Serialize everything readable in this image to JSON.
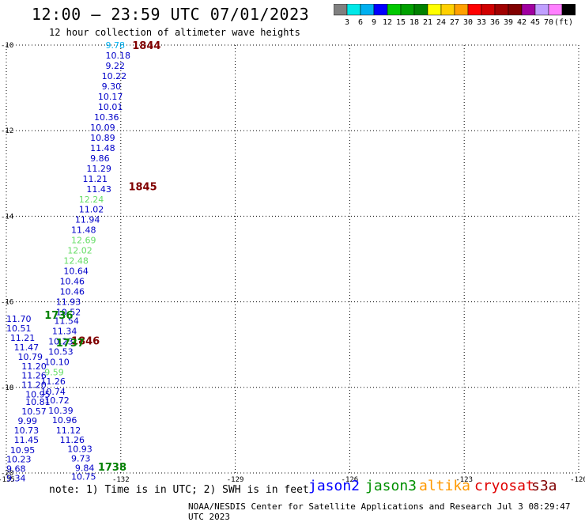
{
  "title": "12:00 – 23:59 UTC 07/01/2023",
  "subtitle": "12 hour collection of altimeter wave heights",
  "legend": {
    "unit": "(ft)",
    "colors": [
      "#808080",
      "#00e8e8",
      "#00b0f0",
      "#0000ff",
      "#00c800",
      "#00a000",
      "#008000",
      "#ffff00",
      "#ffd000",
      "#ffa000",
      "#ff0000",
      "#d00000",
      "#a00000",
      "#800000",
      "#a000a0",
      "#c0a0ff",
      "#ff80ff",
      "#000000"
    ],
    "labels": [
      "3",
      "6",
      "9",
      "12",
      "15",
      "18",
      "21",
      "24",
      "27",
      "30",
      "33",
      "36",
      "39",
      "42",
      "45",
      "70"
    ]
  },
  "axes": {
    "lon_labels": [
      "-135",
      "-132",
      "-129",
      "-126",
      "-123",
      "-120"
    ],
    "lat_labels": [
      "-10",
      "-12",
      "-14",
      "-16",
      "-18",
      "-20"
    ]
  },
  "times": [
    {
      "text": "1844",
      "lon": -131.7,
      "lat": -10.0,
      "color": "#800000"
    },
    {
      "text": "1845",
      "lon": -131.8,
      "lat": -13.3,
      "color": "#800000"
    },
    {
      "text": "1846",
      "lon": -133.3,
      "lat": -16.9,
      "color": "#800000"
    },
    {
      "text": "1736",
      "lon": -134.0,
      "lat": -16.3,
      "color": "#008000"
    },
    {
      "text": "1737",
      "lon": -133.7,
      "lat": -16.95,
      "color": "#008000"
    },
    {
      "text": "1738",
      "lon": -132.6,
      "lat": -19.85,
      "color": "#008000"
    }
  ],
  "track_a": [
    {
      "v": "9.78",
      "lon": -132.4,
      "lat": -10.0,
      "color": "#00b0f0"
    },
    {
      "v": "10.18",
      "lon": -132.4,
      "lat": -10.24,
      "color": "#0000c8"
    },
    {
      "v": "9.22",
      "lon": -132.4,
      "lat": -10.48,
      "color": "#0000c8"
    },
    {
      "v": "10.22",
      "lon": -132.5,
      "lat": -10.72,
      "color": "#0000c8"
    },
    {
      "v": "9.30",
      "lon": -132.5,
      "lat": -10.96,
      "color": "#0000c8"
    },
    {
      "v": "10.17",
      "lon": -132.6,
      "lat": -11.2,
      "color": "#0000c8"
    },
    {
      "v": "10.01",
      "lon": -132.6,
      "lat": -11.44,
      "color": "#0000c8"
    },
    {
      "v": "10.36",
      "lon": -132.7,
      "lat": -11.68,
      "color": "#0000c8"
    },
    {
      "v": "10.09",
      "lon": -132.8,
      "lat": -11.92,
      "color": "#0000c8"
    },
    {
      "v": "10.89",
      "lon": -132.8,
      "lat": -12.16,
      "color": "#0000c8"
    },
    {
      "v": "11.48",
      "lon": -132.8,
      "lat": -12.4,
      "color": "#0000c8"
    },
    {
      "v": "9.86",
      "lon": -132.8,
      "lat": -12.64,
      "color": "#0000c8"
    },
    {
      "v": "11.29",
      "lon": -132.9,
      "lat": -12.88,
      "color": "#0000c8"
    },
    {
      "v": "11.21",
      "lon": -133.0,
      "lat": -13.12,
      "color": "#0000c8"
    },
    {
      "v": "11.43",
      "lon": -132.9,
      "lat": -13.36,
      "color": "#0000c8"
    },
    {
      "v": "12.24",
      "lon": -133.1,
      "lat": -13.6,
      "color": "#66dd66"
    },
    {
      "v": "11.02",
      "lon": -133.1,
      "lat": -13.84,
      "color": "#0000c8"
    },
    {
      "v": "11.94",
      "lon": -133.2,
      "lat": -14.08,
      "color": "#0000c8"
    },
    {
      "v": "11.48",
      "lon": -133.3,
      "lat": -14.32,
      "color": "#0000c8"
    },
    {
      "v": "12.69",
      "lon": -133.3,
      "lat": -14.56,
      "color": "#66dd66"
    },
    {
      "v": "12.02",
      "lon": -133.4,
      "lat": -14.8,
      "color": "#66dd66"
    },
    {
      "v": "12.48",
      "lon": -133.5,
      "lat": -15.04,
      "color": "#66dd66"
    },
    {
      "v": "10.64",
      "lon": -133.5,
      "lat": -15.28,
      "color": "#0000c8"
    },
    {
      "v": "10.46",
      "lon": -133.6,
      "lat": -15.52,
      "color": "#0000c8"
    },
    {
      "v": "10.46",
      "lon": -133.6,
      "lat": -15.76,
      "color": "#0000c8"
    },
    {
      "v": "11.93",
      "lon": -133.7,
      "lat": -16.0,
      "color": "#0000c8"
    },
    {
      "v": "10.52",
      "lon": -133.7,
      "lat": -16.24,
      "color": "#0000c8"
    },
    {
      "v": "11.54",
      "lon": -133.75,
      "lat": -16.44,
      "color": "#0000c8"
    },
    {
      "v": "11.34",
      "lon": -133.8,
      "lat": -16.68,
      "color": "#0000c8"
    },
    {
      "v": "10.23",
      "lon": -133.9,
      "lat": -16.92,
      "color": "#0000c8"
    },
    {
      "v": "10.53",
      "lon": -133.9,
      "lat": -17.16,
      "color": "#0000c8"
    },
    {
      "v": "10.10",
      "lon": -134.0,
      "lat": -17.4,
      "color": "#0000c8"
    },
    {
      "v": "9.59",
      "lon": -134.0,
      "lat": -17.64,
      "color": "#66dd66"
    },
    {
      "v": "11.26",
      "lon": -134.1,
      "lat": -17.86,
      "color": "#0000c8"
    },
    {
      "v": "10.74",
      "lon": -134.1,
      "lat": -18.1,
      "color": "#0000c8"
    },
    {
      "v": "10.72",
      "lon": -134.0,
      "lat": -18.3,
      "color": "#0000c8"
    },
    {
      "v": "10.39",
      "lon": -133.9,
      "lat": -18.54,
      "color": "#0000c8"
    },
    {
      "v": "10.96",
      "lon": -133.8,
      "lat": -18.76,
      "color": "#0000c8"
    },
    {
      "v": "11.12",
      "lon": -133.7,
      "lat": -19.0,
      "color": "#0000c8"
    },
    {
      "v": "11.26",
      "lon": -133.6,
      "lat": -19.22,
      "color": "#0000c8"
    },
    {
      "v": "10.93",
      "lon": -133.4,
      "lat": -19.44,
      "color": "#0000c8"
    },
    {
      "v": "9.73",
      "lon": -133.3,
      "lat": -19.66,
      "color": "#0000c8"
    },
    {
      "v": "9.84",
      "lon": -133.2,
      "lat": -19.88,
      "color": "#0000c8"
    },
    {
      "v": "10.75",
      "lon": -133.3,
      "lat": -20.08,
      "color": "#0000c8"
    }
  ],
  "track_b": [
    {
      "v": "11.70",
      "lon": -135.0,
      "lat": -16.4,
      "color": "#0000c8"
    },
    {
      "v": "10.51",
      "lon": -135.0,
      "lat": -16.62,
      "color": "#0000c8"
    },
    {
      "v": "11.21",
      "lon": -134.9,
      "lat": -16.84,
      "color": "#0000c8"
    },
    {
      "v": "11.47",
      "lon": -134.8,
      "lat": -17.06,
      "color": "#0000c8"
    },
    {
      "v": "10.79",
      "lon": -134.7,
      "lat": -17.28,
      "color": "#0000c8"
    },
    {
      "v": "11.20",
      "lon": -134.6,
      "lat": -17.5,
      "color": "#0000c8"
    },
    {
      "v": "11.26",
      "lon": -134.6,
      "lat": -17.72,
      "color": "#0000c8"
    },
    {
      "v": "11.20",
      "lon": -134.6,
      "lat": -17.94,
      "color": "#0000c8"
    },
    {
      "v": "10.95",
      "lon": -134.5,
      "lat": -18.16,
      "color": "#0000c8"
    },
    {
      "v": "10.81",
      "lon": -134.5,
      "lat": -18.34,
      "color": "#0000c8"
    },
    {
      "v": "10.57",
      "lon": -134.6,
      "lat": -18.56,
      "color": "#0000c8"
    },
    {
      "v": "9.99",
      "lon": -134.7,
      "lat": -18.78,
      "color": "#0000c8"
    },
    {
      "v": "10.73",
      "lon": -134.8,
      "lat": -19.0,
      "color": "#0000c8"
    },
    {
      "v": "11.45",
      "lon": -134.8,
      "lat": -19.22,
      "color": "#0000c8"
    },
    {
      "v": "10.95",
      "lon": -134.9,
      "lat": -19.46,
      "color": "#0000c8"
    },
    {
      "v": "10.23",
      "lon": -135.0,
      "lat": -19.68,
      "color": "#0000c8"
    },
    {
      "v": "9.68",
      "lon": -135.0,
      "lat": -19.9,
      "color": "#0000c8"
    },
    {
      "v": "9.34",
      "lon": -135.0,
      "lat": -20.12,
      "color": "#0000c8"
    }
  ],
  "note": "note: 1) Time is in UTC; 2) SWH is in feet",
  "satellites": [
    {
      "name": "jason2",
      "color": "#0000ff"
    },
    {
      "name": "jason3",
      "color": "#009000"
    },
    {
      "name": "altika",
      "color": "#ff9900"
    },
    {
      "name": "cryosat",
      "color": "#e00000"
    },
    {
      "name": "s3a",
      "color": "#800000"
    }
  ],
  "footer": "NOAA/NESDIS Center for Satellite Applications and Research   Jul  3 08:29:47 UTC 2023"
}
